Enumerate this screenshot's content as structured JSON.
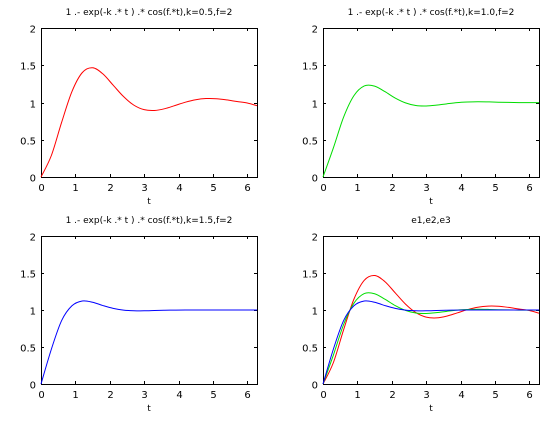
{
  "colors": {
    "background": "#ffffff",
    "axes": "#000000",
    "text": "#000000"
  },
  "chart_data": [
    {
      "type": "line",
      "title": "1 .- exp(-k .* t ) .* cos(f.*t),k=0.5,f=2",
      "xlabel": "t",
      "ylabel": "",
      "xlim": [
        0,
        6.2832
      ],
      "ylim": [
        0,
        2
      ],
      "xticks": [
        "0",
        "1",
        "2",
        "3",
        "4",
        "5",
        "6"
      ],
      "yticks": [
        "0",
        "0.5",
        "1",
        "1.5",
        "2"
      ],
      "grid": false,
      "x": [
        0,
        0.3,
        0.6,
        0.9,
        1.2,
        1.5,
        1.8,
        2.1,
        2.4,
        2.7,
        3.0,
        3.3,
        3.6,
        3.9,
        4.2,
        4.5,
        4.8,
        5.1,
        5.4,
        5.7,
        6.0,
        6.283
      ],
      "series": [
        {
          "color": "#ff0000",
          "values": [
            0,
            0.287,
            0.734,
            1.147,
            1.401,
            1.466,
            1.384,
            1.232,
            1.08,
            0.965,
            0.904,
            0.893,
            0.917,
            0.96,
            1.004,
            1.037,
            1.053,
            1.051,
            1.035,
            1.013,
            0.993,
            0.957
          ]
        }
      ]
    },
    {
      "type": "line",
      "title": "1 .- exp(-k .* t ) .* cos(f.*t),k=1.0,f=2",
      "xlabel": "t",
      "ylabel": "",
      "xlim": [
        0,
        6.2832
      ],
      "ylim": [
        0,
        2
      ],
      "xticks": [
        "0",
        "1",
        "2",
        "3",
        "4",
        "5",
        "6"
      ],
      "yticks": [
        "0",
        "0.5",
        "1",
        "1.5",
        "2"
      ],
      "grid": false,
      "x": [
        0,
        0.3,
        0.6,
        0.9,
        1.2,
        1.5,
        1.8,
        2.1,
        2.4,
        2.7,
        3.0,
        3.3,
        3.6,
        3.9,
        4.2,
        4.5,
        4.8,
        5.1,
        5.4,
        5.7,
        6.0,
        6.283
      ],
      "series": [
        {
          "color": "#00dd00",
          "values": [
            0,
            0.388,
            0.804,
            1.092,
            1.222,
            1.22,
            1.146,
            1.06,
            0.995,
            0.959,
            0.953,
            0.964,
            0.982,
            0.998,
            1.006,
            1.01,
            1.008,
            1.004,
            1.001,
            0.999,
            0.998,
            0.998
          ]
        }
      ]
    },
    {
      "type": "line",
      "title": "1 .- exp(-k .* t ) .* cos(f.*t),k=1.5,f=2",
      "xlabel": "t",
      "ylabel": "",
      "xlim": [
        0,
        6.2832
      ],
      "ylim": [
        0,
        2
      ],
      "xticks": [
        "0",
        "1",
        "2",
        "3",
        "4",
        "5",
        "6"
      ],
      "yticks": [
        "0",
        "0.5",
        "1",
        "1.5",
        "2"
      ],
      "grid": false,
      "x": [
        0,
        0.3,
        0.6,
        0.9,
        1.2,
        1.5,
        1.8,
        2.1,
        2.4,
        2.7,
        3.0,
        3.3,
        3.6,
        3.9,
        4.2,
        4.5,
        4.8,
        5.1,
        5.4,
        5.7,
        6.0,
        6.283
      ],
      "series": [
        {
          "color": "#0000ff",
          "values": [
            0,
            0.468,
            0.857,
            1.057,
            1.122,
            1.105,
            1.06,
            1.022,
            0.999,
            0.99,
            0.989,
            0.993,
            0.997,
            0.999,
            1.0,
            1.0,
            1.0,
            1.0,
            1.0,
            1.0,
            1.0,
            1.0
          ]
        }
      ]
    },
    {
      "type": "line",
      "title": "e1,e2,e3",
      "xlabel": "t",
      "ylabel": "",
      "xlim": [
        0,
        6.2832
      ],
      "ylim": [
        0,
        2
      ],
      "xticks": [
        "0",
        "1",
        "2",
        "3",
        "4",
        "5",
        "6"
      ],
      "yticks": [
        "0",
        "0.5",
        "1",
        "1.5",
        "2"
      ],
      "grid": false,
      "x": [
        0,
        0.3,
        0.6,
        0.9,
        1.2,
        1.5,
        1.8,
        2.1,
        2.4,
        2.7,
        3.0,
        3.3,
        3.6,
        3.9,
        4.2,
        4.5,
        4.8,
        5.1,
        5.4,
        5.7,
        6.0,
        6.283
      ],
      "series": [
        {
          "color": "#ff0000",
          "values": [
            0,
            0.287,
            0.734,
            1.147,
            1.401,
            1.466,
            1.384,
            1.232,
            1.08,
            0.965,
            0.904,
            0.893,
            0.917,
            0.96,
            1.004,
            1.037,
            1.053,
            1.051,
            1.035,
            1.013,
            0.993,
            0.957
          ]
        },
        {
          "color": "#00dd00",
          "values": [
            0,
            0.388,
            0.804,
            1.092,
            1.222,
            1.22,
            1.146,
            1.06,
            0.995,
            0.959,
            0.953,
            0.964,
            0.982,
            0.998,
            1.006,
            1.01,
            1.008,
            1.004,
            1.001,
            0.999,
            0.998,
            0.998
          ]
        },
        {
          "color": "#0000ff",
          "values": [
            0,
            0.468,
            0.857,
            1.057,
            1.122,
            1.105,
            1.06,
            1.022,
            0.999,
            0.99,
            0.989,
            0.993,
            0.997,
            0.999,
            1.0,
            1.0,
            1.0,
            1.0,
            1.0,
            1.0,
            1.0,
            1.0
          ]
        }
      ]
    }
  ]
}
